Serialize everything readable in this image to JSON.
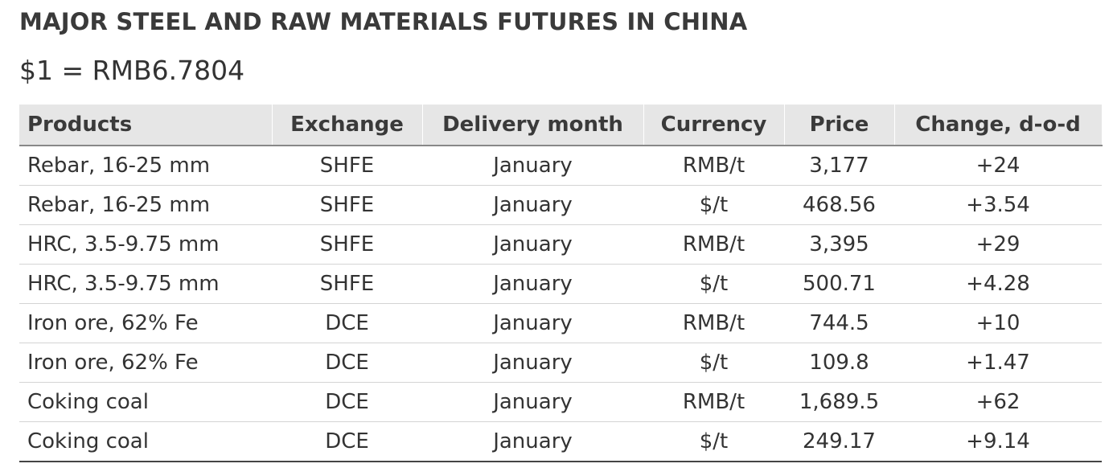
{
  "header": {
    "title": "MAJOR STEEL AND RAW MATERIALS FUTURES IN CHINA",
    "subtitle": "$1 = RMB6.7804"
  },
  "table": {
    "columns": [
      "Products",
      "Exchange",
      "Delivery month",
      "Currency",
      "Price",
      "Change, d-o-d"
    ],
    "rows": [
      [
        "Rebar, 16-25 mm",
        "SHFE",
        "January",
        "RMB/t",
        "3,177",
        "+24"
      ],
      [
        "Rebar, 16-25 mm",
        "SHFE",
        "January",
        "$/t",
        "468.56",
        "+3.54"
      ],
      [
        "HRC, 3.5-9.75 mm",
        "SHFE",
        "January",
        "RMB/t",
        "3,395",
        "+29"
      ],
      [
        "HRC, 3.5-9.75 mm",
        "SHFE",
        "January",
        "$/t",
        "500.71",
        "+4.28"
      ],
      [
        "Iron ore, 62% Fe",
        "DCE",
        "January",
        "RMB/t",
        "744.5",
        "+10"
      ],
      [
        "Iron ore, 62% Fe",
        "DCE",
        "January",
        "$/t",
        "109.8",
        "+1.47"
      ],
      [
        "Coking coal",
        "DCE",
        "January",
        "RMB/t",
        "1,689.5",
        "+62"
      ],
      [
        "Coking coal",
        "DCE",
        "January",
        "$/t",
        "249.17",
        "+9.14"
      ]
    ]
  }
}
